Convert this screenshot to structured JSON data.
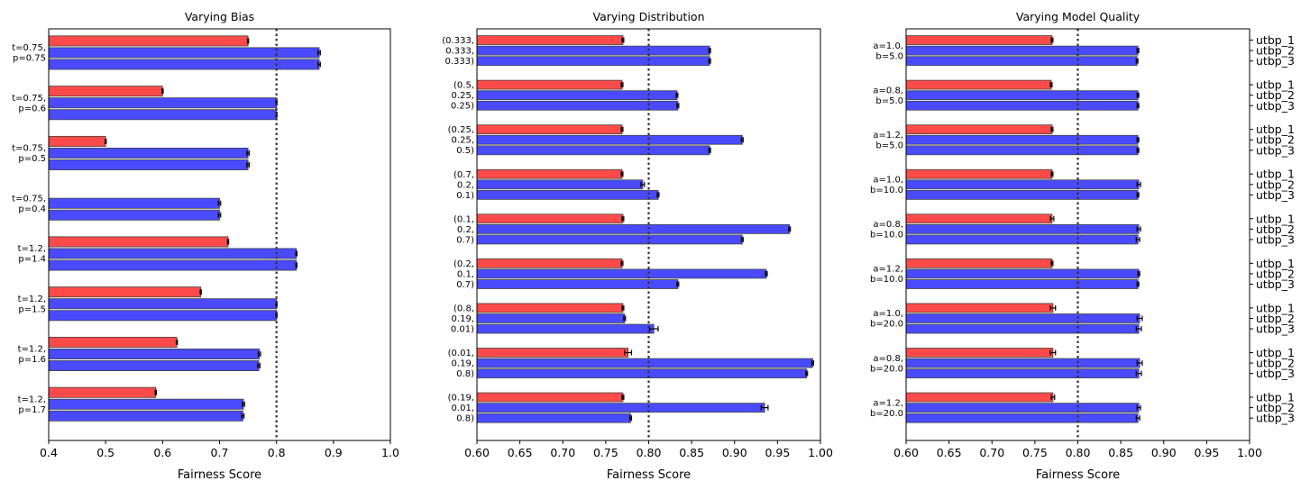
{
  "colors": {
    "utbp_1": "#ff4a4a",
    "utbp_2": "#4a4aff",
    "utbp_3": "#4a4aff",
    "edge": "#444444",
    "reference": "#333333"
  },
  "chart_data": [
    {
      "type": "bar",
      "orientation": "horizontal",
      "title": "Varying Bias",
      "xlabel": "Fairness Score",
      "ylabel": "",
      "xlim": [
        0.4,
        1.0
      ],
      "xticks": [
        "0.4",
        "0.5",
        "0.6",
        "0.7",
        "0.8",
        "0.9",
        "1.0"
      ],
      "reference_line": 0.8,
      "series_names": [],
      "groups": [
        {
          "label": [
            "t=0.75,",
            "p=0.75"
          ],
          "values": [
            0.75,
            0.875,
            0.875
          ],
          "errors": [
            0.001,
            0.002,
            0.002
          ]
        },
        {
          "label": [
            "t=0.75,",
            "p=0.6"
          ],
          "values": [
            0.6,
            0.8,
            0.8
          ],
          "errors": [
            0.001,
            0.001,
            0.001
          ]
        },
        {
          "label": [
            "t=0.75,",
            "p=0.5"
          ],
          "values": [
            0.5,
            0.75,
            0.75
          ],
          "errors": [
            0.001,
            0.002,
            0.002
          ]
        },
        {
          "label": [
            "t=0.75,",
            "p=0.4"
          ],
          "values": [
            null,
            0.7,
            0.7
          ],
          "errors": [
            0,
            0.002,
            0.002
          ]
        },
        {
          "label": [
            "t=1.2,",
            "p=1.4"
          ],
          "values": [
            0.715,
            0.835,
            0.835
          ],
          "errors": [
            0.001,
            0.001,
            0.001
          ]
        },
        {
          "label": [
            "t=1.2,",
            "p=1.5"
          ],
          "values": [
            0.667,
            0.8,
            0.8
          ],
          "errors": [
            0.001,
            0.001,
            0.001
          ]
        },
        {
          "label": [
            "t=1.2,",
            "p=1.6"
          ],
          "values": [
            0.625,
            0.77,
            0.769
          ],
          "errors": [
            0.001,
            0.002,
            0.002
          ]
        },
        {
          "label": [
            "t=1.2,",
            "p=1.7"
          ],
          "values": [
            0.588,
            0.742,
            0.741
          ],
          "errors": [
            0.001,
            0.002,
            0.002
          ]
        }
      ]
    },
    {
      "type": "bar",
      "orientation": "horizontal",
      "title": "Varying Distribution",
      "xlabel": "Fairness Score",
      "ylabel": "",
      "xlim": [
        0.6,
        1.0
      ],
      "xticks": [
        "0.60",
        "0.65",
        "0.70",
        "0.75",
        "0.80",
        "0.85",
        "0.90",
        "0.95",
        "1.00"
      ],
      "reference_line": 0.8,
      "series_names": [],
      "groups": [
        {
          "label": [
            "(0.333,",
            "0.333,",
            "0.333)"
          ],
          "values": [
            0.77,
            0.871,
            0.871
          ],
          "errors": [
            0.001,
            0.001,
            0.001
          ]
        },
        {
          "label": [
            "(0.5,",
            "0.25,",
            "0.25)"
          ],
          "values": [
            0.769,
            0.833,
            0.834
          ],
          "errors": [
            0.001,
            0.001,
            0.001
          ]
        },
        {
          "label": [
            "(0.25,",
            "0.25,",
            "0.5)"
          ],
          "values": [
            0.769,
            0.909,
            0.871
          ],
          "errors": [
            0.001,
            0.001,
            0.001
          ]
        },
        {
          "label": [
            "(0.7,",
            "0.2,",
            "0.1)"
          ],
          "values": [
            0.769,
            0.793,
            0.811
          ],
          "errors": [
            0.001,
            0.002,
            0.001
          ]
        },
        {
          "label": [
            "(0.1,",
            "0.2,",
            "0.7)"
          ],
          "values": [
            0.77,
            0.964,
            0.909
          ],
          "errors": [
            0.001,
            0.001,
            0.001
          ]
        },
        {
          "label": [
            "(0.2,",
            "0.1,",
            "0.7)"
          ],
          "values": [
            0.769,
            0.937,
            0.834
          ],
          "errors": [
            0.001,
            0.001,
            0.001
          ]
        },
        {
          "label": [
            "(0.8,",
            "0.19,",
            "0.01)"
          ],
          "values": [
            0.77,
            0.772,
            0.806
          ],
          "errors": [
            0.001,
            0.001,
            0.005
          ]
        },
        {
          "label": [
            "(0.01,",
            "0.19,",
            "0.8)"
          ],
          "values": [
            0.776,
            0.991,
            0.984
          ],
          "errors": [
            0.004,
            0.001,
            0.001
          ]
        },
        {
          "label": [
            "(0.19,",
            "0.01,",
            "0.8)"
          ],
          "values": [
            0.77,
            0.935,
            0.779
          ],
          "errors": [
            0.001,
            0.004,
            0.001
          ]
        }
      ]
    },
    {
      "type": "bar",
      "orientation": "horizontal",
      "title": "Varying Model Quality",
      "xlabel": "Fairness Score",
      "ylabel": "",
      "xlim": [
        0.6,
        1.0
      ],
      "xticks": [
        "0.60",
        "0.65",
        "0.70",
        "0.75",
        "0.80",
        "0.85",
        "0.90",
        "0.95",
        "1.00"
      ],
      "reference_line": 0.8,
      "series_names": [
        "utbp_1",
        "utbp_2",
        "utbp_3"
      ],
      "groups": [
        {
          "label": [
            "a=1.0,",
            "b=5.0"
          ],
          "values": [
            0.77,
            0.87,
            0.869
          ],
          "errors": [
            0.001,
            0.001,
            0.001
          ]
        },
        {
          "label": [
            "a=0.8,",
            "b=5.0"
          ],
          "values": [
            0.769,
            0.87,
            0.87
          ],
          "errors": [
            0.001,
            0.001,
            0.001
          ]
        },
        {
          "label": [
            "a=1.2,",
            "b=5.0"
          ],
          "values": [
            0.77,
            0.87,
            0.87
          ],
          "errors": [
            0.001,
            0.001,
            0.001
          ]
        },
        {
          "label": [
            "a=1.0,",
            "b=10.0"
          ],
          "values": [
            0.77,
            0.871,
            0.87
          ],
          "errors": [
            0.001,
            0.002,
            0.001
          ]
        },
        {
          "label": [
            "a=0.8,",
            "b=10.0"
          ],
          "values": [
            0.77,
            0.871,
            0.87
          ],
          "errors": [
            0.002,
            0.002,
            0.002
          ]
        },
        {
          "label": [
            "a=1.2,",
            "b=10.0"
          ],
          "values": [
            0.77,
            0.871,
            0.87
          ],
          "errors": [
            0.001,
            0.001,
            0.001
          ]
        },
        {
          "label": [
            "a=1.0,",
            "b=20.0"
          ],
          "values": [
            0.771,
            0.872,
            0.871
          ],
          "errors": [
            0.003,
            0.003,
            0.003
          ]
        },
        {
          "label": [
            "a=0.8,",
            "b=20.0"
          ],
          "values": [
            0.771,
            0.872,
            0.871
          ],
          "errors": [
            0.003,
            0.003,
            0.003
          ]
        },
        {
          "label": [
            "a=1.2,",
            "b=20.0"
          ],
          "values": [
            0.771,
            0.871,
            0.87
          ],
          "errors": [
            0.002,
            0.002,
            0.002
          ]
        }
      ]
    }
  ]
}
